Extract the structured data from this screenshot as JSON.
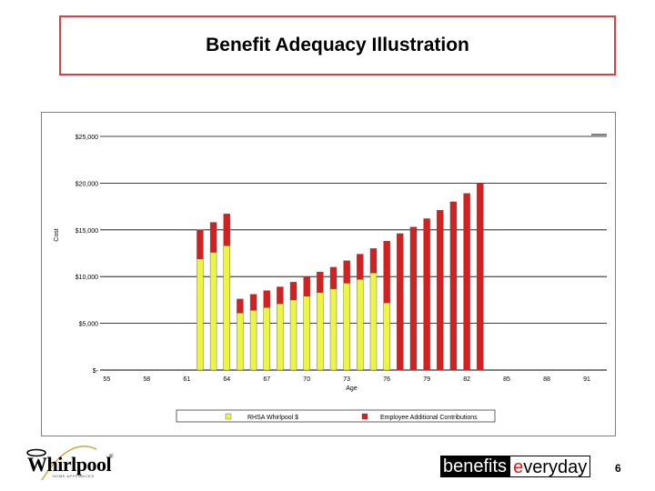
{
  "page": {
    "title": "Benefit Adequacy Illustration",
    "page_number": "6"
  },
  "logos": {
    "left_brand": "Whirlpool",
    "left_tagline": "HOME APPLIANCES",
    "right_brand_part1": "benefits",
    "right_brand_accent": "e",
    "right_brand_part2": "veryday"
  },
  "chart_data": {
    "type": "bar",
    "stacked": true,
    "title": "",
    "xlabel": "Age",
    "ylabel": "Cost",
    "ylim": [
      0,
      25000
    ],
    "y_ticks": [
      0,
      5000,
      10000,
      15000,
      20000,
      25000
    ],
    "y_tick_labels": [
      "$-",
      "$5,000",
      "$10,000",
      "$15,000",
      "$20,000",
      "$25,000"
    ],
    "categories": [
      55,
      56,
      57,
      58,
      59,
      60,
      61,
      62,
      63,
      64,
      65,
      66,
      67,
      68,
      69,
      70,
      71,
      72,
      73,
      74,
      75,
      76,
      77,
      78,
      79,
      80,
      81,
      82,
      83,
      84,
      85,
      86,
      87,
      88,
      89,
      90,
      91,
      92
    ],
    "x_tick_labels": [
      "55",
      "58",
      "61",
      "64",
      "67",
      "70",
      "73",
      "76",
      "79",
      "82",
      "85",
      "88",
      "91"
    ],
    "series": [
      {
        "name": "RHSA Whirlpool $",
        "color": "#ecf542",
        "values": [
          0,
          0,
          0,
          0,
          0,
          0,
          0,
          11900,
          12600,
          13300,
          6100,
          6400,
          6700,
          7100,
          7500,
          7900,
          8300,
          8700,
          9300,
          9700,
          10400,
          7200,
          0,
          0,
          0,
          0,
          0,
          0,
          0,
          0,
          0,
          0,
          0,
          0,
          0,
          0,
          0,
          0
        ]
      },
      {
        "name": "Employee Additional Contributions",
        "color": "#d42020",
        "values": [
          0,
          0,
          0,
          0,
          0,
          0,
          0,
          3100,
          3200,
          3400,
          1500,
          1700,
          1800,
          1800,
          1900,
          2100,
          2200,
          2300,
          2400,
          2700,
          2600,
          6600,
          14600,
          15300,
          16200,
          17100,
          18000,
          18900,
          20000,
          0,
          0,
          0,
          0,
          0,
          0,
          0,
          0,
          0
        ]
      }
    ],
    "legend_position": "bottom",
    "grid": true
  }
}
